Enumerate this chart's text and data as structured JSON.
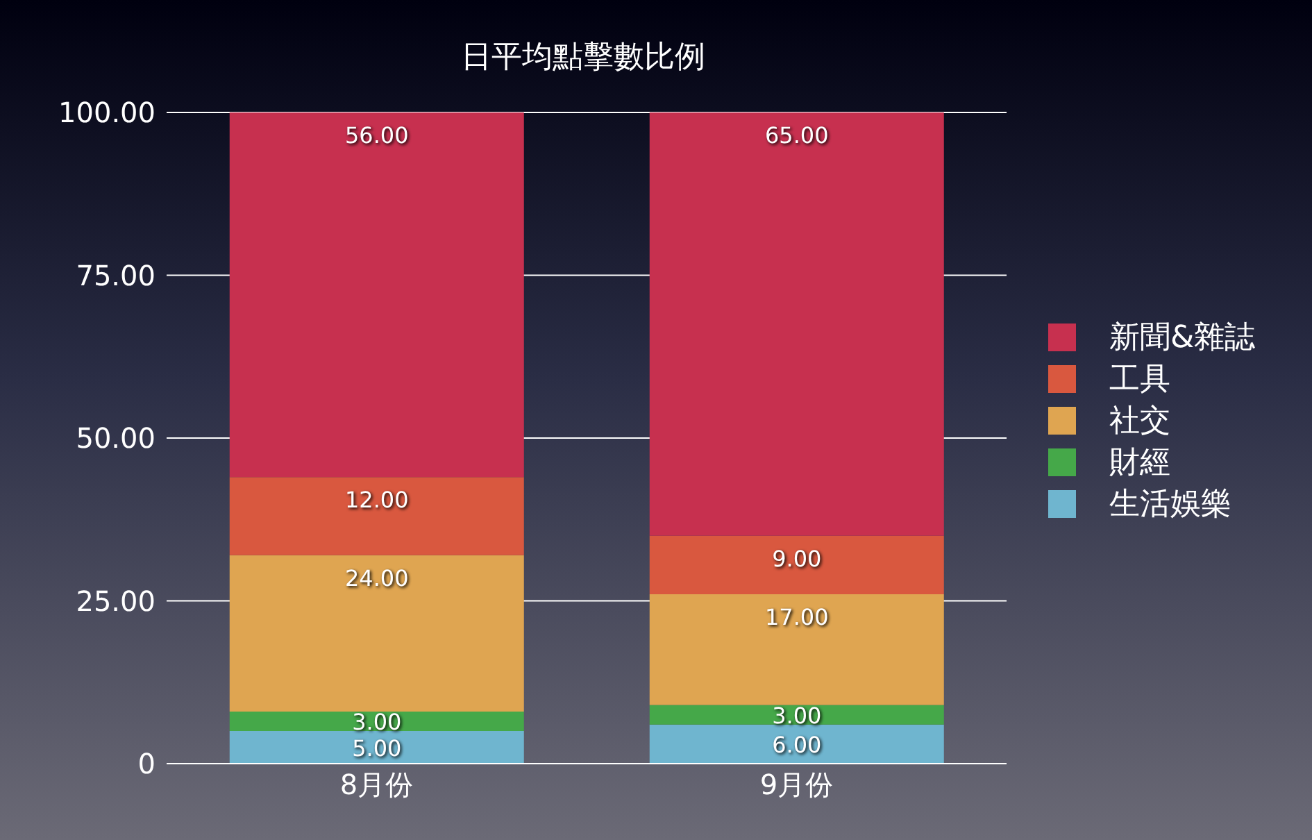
{
  "chart_data": {
    "type": "bar",
    "title": "日平均點擊數比例",
    "stacked": true,
    "categories": [
      "8月份",
      "9月份"
    ],
    "series": [
      {
        "name": "生活娛樂",
        "color": "#6fb5cf",
        "values": [
          5,
          6
        ],
        "value_labels": [
          "5.00",
          "6.00"
        ]
      },
      {
        "name": "財經",
        "color": "#45a849",
        "values": [
          3,
          3
        ],
        "value_labels": [
          "3.00",
          "3.00"
        ]
      },
      {
        "name": "社交",
        "color": "#dfa551",
        "values": [
          24,
          17
        ],
        "value_labels": [
          "24.00",
          "17.00"
        ]
      },
      {
        "name": "工具",
        "color": "#d9583f",
        "values": [
          12,
          9
        ],
        "value_labels": [
          "12.00",
          "9.00"
        ]
      },
      {
        "name": "新聞&雜誌",
        "color": "#c7304f",
        "values": [
          56,
          65
        ],
        "value_labels": [
          "56.00",
          "65.00"
        ]
      }
    ],
    "ylim": [
      0,
      100
    ],
    "yticks": [
      0,
      {
        "value": 25,
        "label": "25.00"
      },
      {
        "value": 50,
        "label": "50.00"
      },
      {
        "value": 75,
        "label": "75.00"
      },
      {
        "value": 100,
        "label": "100.00"
      }
    ],
    "grid": "y",
    "legend": "right"
  }
}
